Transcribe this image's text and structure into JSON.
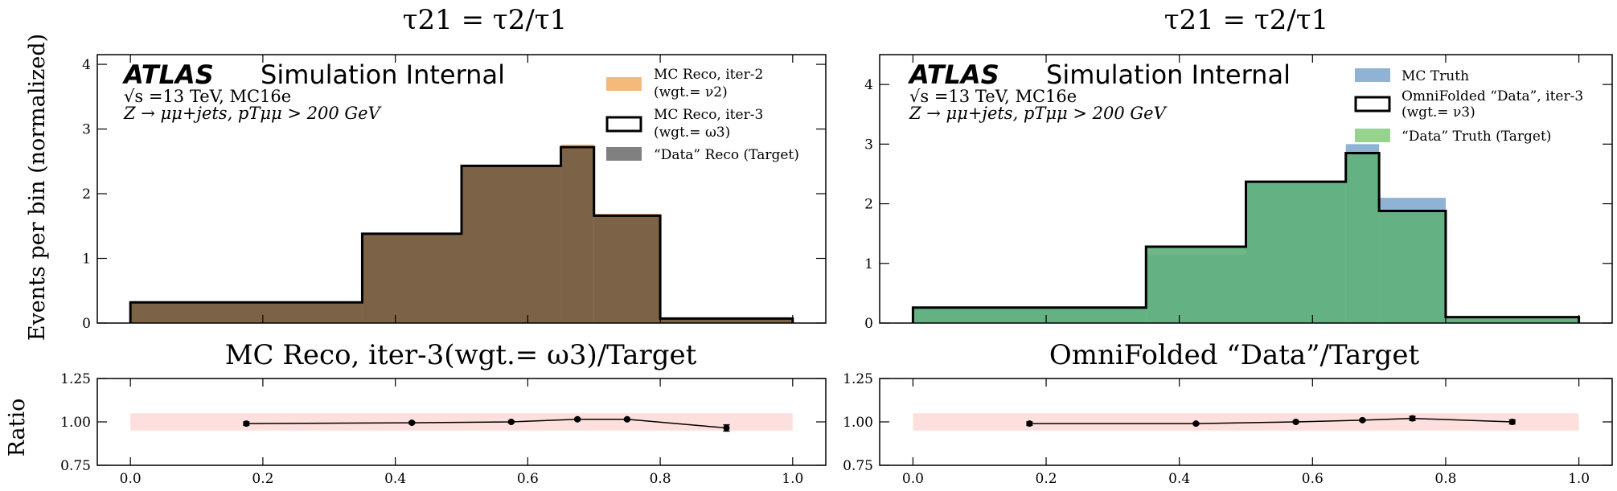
{
  "figure": {
    "ylabel_main": "Events per bin (normalized)",
    "ylabel_ratio": "Ratio"
  },
  "chart_data": [
    {
      "type": "area",
      "panel": "left-main",
      "title": "τ21 = τ2/τ1",
      "ylabel": "Events per bin (normalized)",
      "ylim": [
        0,
        4.15
      ],
      "yticks": [
        "0",
        "1",
        "2",
        "3",
        "4"
      ],
      "xlim": [
        -0.05,
        1.05
      ],
      "bin_edges": [
        0.0,
        0.35,
        0.5,
        0.65,
        0.7,
        0.8,
        1.0
      ],
      "atlas": {
        "logo": "ATLAS",
        "label": "Simulation Internal",
        "line1": "√s =13 TeV, MC16e",
        "line2": "Z → μμ+jets, pTμμ > 200 GeV"
      },
      "legend": {
        "placement": "top-right",
        "entries": [
          {
            "label": "MC Reco, iter-2",
            "sub": "(wgt.= ν2)",
            "color": "#f5b97a",
            "style": "fill"
          },
          {
            "label": "MC Reco, iter-3",
            "sub": "(wgt.= ω3)",
            "color": "#000000",
            "style": "outline"
          },
          {
            "label": "“Data” Reco (Target)",
            "sub": "",
            "color": "#808080",
            "style": "fill"
          }
        ]
      },
      "series": [
        {
          "name": "MC Reco, iter-2",
          "values": [
            0.31,
            1.37,
            2.42,
            2.76,
            1.69,
            0.07
          ]
        },
        {
          "name": "MC Reco, iter-3",
          "values": [
            0.32,
            1.38,
            2.43,
            2.72,
            1.66,
            0.07
          ]
        },
        {
          "name": "“Data” Reco (Target)",
          "values": [
            0.32,
            1.38,
            2.43,
            2.7,
            1.65,
            0.07
          ]
        }
      ]
    },
    {
      "type": "area",
      "panel": "right-main",
      "title": "τ21 = τ2/τ1",
      "ylim": [
        0,
        4.5
      ],
      "yticks": [
        "0",
        "1",
        "2",
        "3",
        "4"
      ],
      "xlim": [
        -0.05,
        1.05
      ],
      "bin_edges": [
        0.0,
        0.35,
        0.5,
        0.65,
        0.7,
        0.8,
        1.0
      ],
      "atlas": {
        "logo": "ATLAS",
        "label": "Simulation Internal",
        "line1": "√s =13 TeV, MC16e",
        "line2": "Z → μμ+jets, pTμμ > 200 GeV"
      },
      "legend": {
        "placement": "top-right",
        "entries": [
          {
            "label": "MC Truth",
            "sub": "",
            "color": "#8fb3d4",
            "style": "fill"
          },
          {
            "label": "OmniFolded “Data”, iter-3",
            "sub": "(wgt.= ν3)",
            "color": "#000000",
            "style": "outline"
          },
          {
            "label": "“Data” Truth (Target)",
            "sub": "",
            "color": "#98d28f",
            "style": "fill"
          }
        ]
      },
      "series": [
        {
          "name": "MC Truth",
          "values": [
            0.26,
            1.15,
            2.35,
            3.0,
            2.1,
            0.1
          ]
        },
        {
          "name": "OmniFolded “Data”, iter-3",
          "values": [
            0.26,
            1.28,
            2.37,
            2.85,
            1.88,
            0.1
          ]
        },
        {
          "name": "“Data” Truth (Target)",
          "values": [
            0.26,
            1.28,
            2.37,
            2.84,
            1.88,
            0.1
          ]
        }
      ]
    },
    {
      "type": "line",
      "panel": "left-ratio",
      "title": "MC Reco, iter-3(wgt.= ω3)/Target",
      "ylabel": "Ratio",
      "ylim": [
        0.75,
        1.25
      ],
      "yticks": [
        "0.75",
        "1.00",
        "1.25"
      ],
      "xlim": [
        -0.05,
        1.05
      ],
      "xticks": [
        "0.0",
        "0.2",
        "0.4",
        "0.6",
        "0.8",
        "1.0"
      ],
      "band": [
        0.95,
        1.05
      ],
      "band_color": "#fde0dd",
      "x": [
        0.175,
        0.425,
        0.575,
        0.675,
        0.75,
        0.9
      ],
      "y": [
        0.99,
        0.995,
        1.0,
        1.015,
        1.015,
        0.965
      ],
      "err": [
        0.01,
        0.006,
        0.006,
        0.006,
        0.006,
        0.018
      ]
    },
    {
      "type": "line",
      "panel": "right-ratio",
      "title": "OmniFolded “Data”/Target",
      "ylim": [
        0.75,
        1.25
      ],
      "yticks": [
        "0.75",
        "1.00",
        "1.25"
      ],
      "xlim": [
        -0.05,
        1.05
      ],
      "xticks": [
        "0.0",
        "0.2",
        "0.4",
        "0.6",
        "0.8",
        "1.0"
      ],
      "band": [
        0.95,
        1.05
      ],
      "band_color": "#fde0dd",
      "x": [
        0.175,
        0.425,
        0.575,
        0.675,
        0.75,
        0.9
      ],
      "y": [
        0.99,
        0.99,
        1.0,
        1.01,
        1.02,
        1.0
      ],
      "err": [
        0.01,
        0.006,
        0.006,
        0.006,
        0.012,
        0.012
      ]
    }
  ]
}
